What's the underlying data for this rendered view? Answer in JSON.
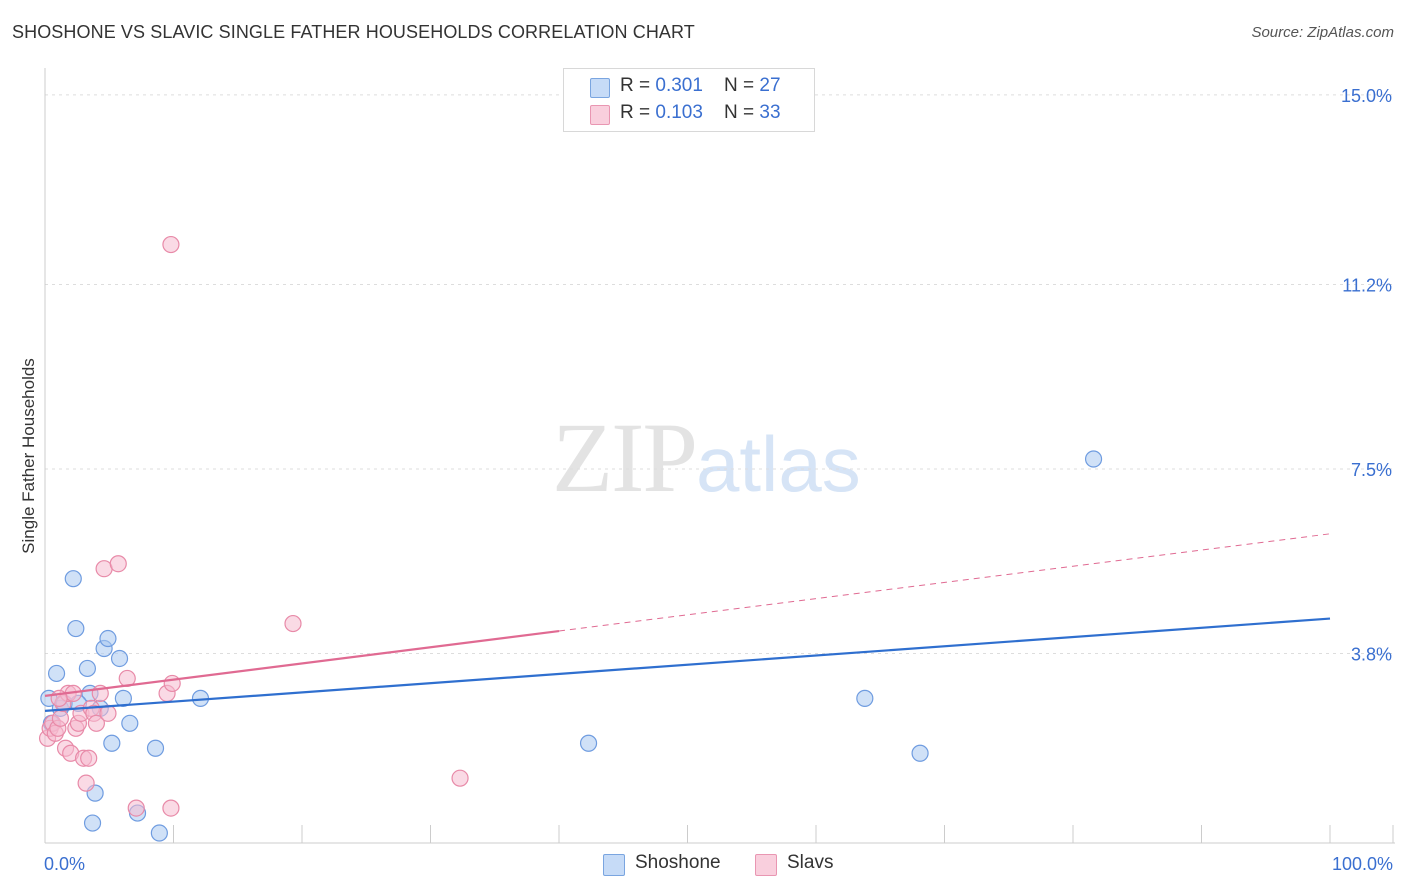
{
  "title": "SHOSHONE VS SLAVIC SINGLE FATHER HOUSEHOLDS CORRELATION CHART",
  "source": "Source: ZipAtlas.com",
  "watermark": {
    "zip": "ZIP",
    "atlas": "atlas"
  },
  "legend": {
    "rows": [
      {
        "r_label": "R = ",
        "r_value": "0.301",
        "n_label": "N = ",
        "n_value": "27"
      },
      {
        "r_label": "R = ",
        "r_value": "0.103",
        "n_label": "N = ",
        "n_value": "33"
      }
    ]
  },
  "bottom_legend": {
    "series1": "Shoshone",
    "series2": "Slavs"
  },
  "colors": {
    "shoshone_fill": "#aac8f0",
    "shoshone_stroke": "#6f9ce0",
    "shoshone_line": "#2f6fcf",
    "slavs_fill": "#f6bcd0",
    "slavs_stroke": "#e88aa8",
    "slavs_line": "#e06a92",
    "tick_label": "#3a6fd0",
    "grid": "#dddddd"
  },
  "chart_data": {
    "type": "scatter",
    "title": "SHOSHONE VS SLAVIC SINGLE FATHER HOUSEHOLDS CORRELATION CHART",
    "xlabel": "",
    "ylabel": "Single Father Households",
    "xlim": [
      0,
      100
    ],
    "ylim": [
      0,
      15.5
    ],
    "x_tick_labels": [
      "0.0%",
      "100.0%"
    ],
    "y_ticks": [
      {
        "value": 3.8,
        "label": "3.8%"
      },
      {
        "value": 7.5,
        "label": "7.5%"
      },
      {
        "value": 11.2,
        "label": "11.2%"
      },
      {
        "value": 15.0,
        "label": "15.0%"
      }
    ],
    "series": [
      {
        "name": "Shoshone",
        "points": [
          [
            0.5,
            2.4
          ],
          [
            0.9,
            3.4
          ],
          [
            1.2,
            2.7
          ],
          [
            1.5,
            2.8
          ],
          [
            2.2,
            5.3
          ],
          [
            2.4,
            4.3
          ],
          [
            3.3,
            3.5
          ],
          [
            3.5,
            3.0
          ],
          [
            3.7,
            0.4
          ],
          [
            3.9,
            1.0
          ],
          [
            4.3,
            2.7
          ],
          [
            4.6,
            3.9
          ],
          [
            4.9,
            4.1
          ],
          [
            5.2,
            2.0
          ],
          [
            5.8,
            3.7
          ],
          [
            6.1,
            2.9
          ],
          [
            6.6,
            2.4
          ],
          [
            7.2,
            0.6
          ],
          [
            8.6,
            1.9
          ],
          [
            8.9,
            0.2
          ],
          [
            12.1,
            2.9
          ],
          [
            42.3,
            2.0
          ],
          [
            63.8,
            2.9
          ],
          [
            68.1,
            1.8
          ],
          [
            81.6,
            7.7
          ],
          [
            0.3,
            2.9
          ],
          [
            2.6,
            2.8
          ]
        ],
        "trend": {
          "x": [
            0,
            100
          ],
          "y": [
            2.65,
            4.5
          ],
          "dashed_from": null
        }
      },
      {
        "name": "Slavs",
        "points": [
          [
            0.2,
            2.1
          ],
          [
            0.4,
            2.3
          ],
          [
            0.6,
            2.4
          ],
          [
            0.8,
            2.2
          ],
          [
            1.0,
            2.3
          ],
          [
            1.2,
            2.5
          ],
          [
            1.4,
            2.8
          ],
          [
            1.6,
            1.9
          ],
          [
            1.8,
            3.0
          ],
          [
            2.0,
            1.8
          ],
          [
            2.2,
            3.0
          ],
          [
            2.4,
            2.3
          ],
          [
            2.6,
            2.4
          ],
          [
            2.8,
            2.6
          ],
          [
            3.0,
            1.7
          ],
          [
            3.2,
            1.2
          ],
          [
            3.4,
            1.7
          ],
          [
            3.6,
            2.7
          ],
          [
            3.8,
            2.6
          ],
          [
            4.0,
            2.4
          ],
          [
            4.3,
            3.0
          ],
          [
            4.6,
            5.5
          ],
          [
            5.7,
            5.6
          ],
          [
            6.4,
            3.3
          ],
          [
            7.1,
            0.7
          ],
          [
            9.5,
            3.0
          ],
          [
            9.8,
            12.0
          ],
          [
            9.8,
            0.7
          ],
          [
            9.9,
            3.2
          ],
          [
            19.3,
            4.4
          ],
          [
            32.3,
            1.3
          ],
          [
            1.1,
            2.9
          ],
          [
            4.9,
            2.6
          ]
        ],
        "trend": {
          "x": [
            0,
            100
          ],
          "y": [
            2.95,
            6.2
          ],
          "dashed_from": 40
        }
      }
    ]
  }
}
